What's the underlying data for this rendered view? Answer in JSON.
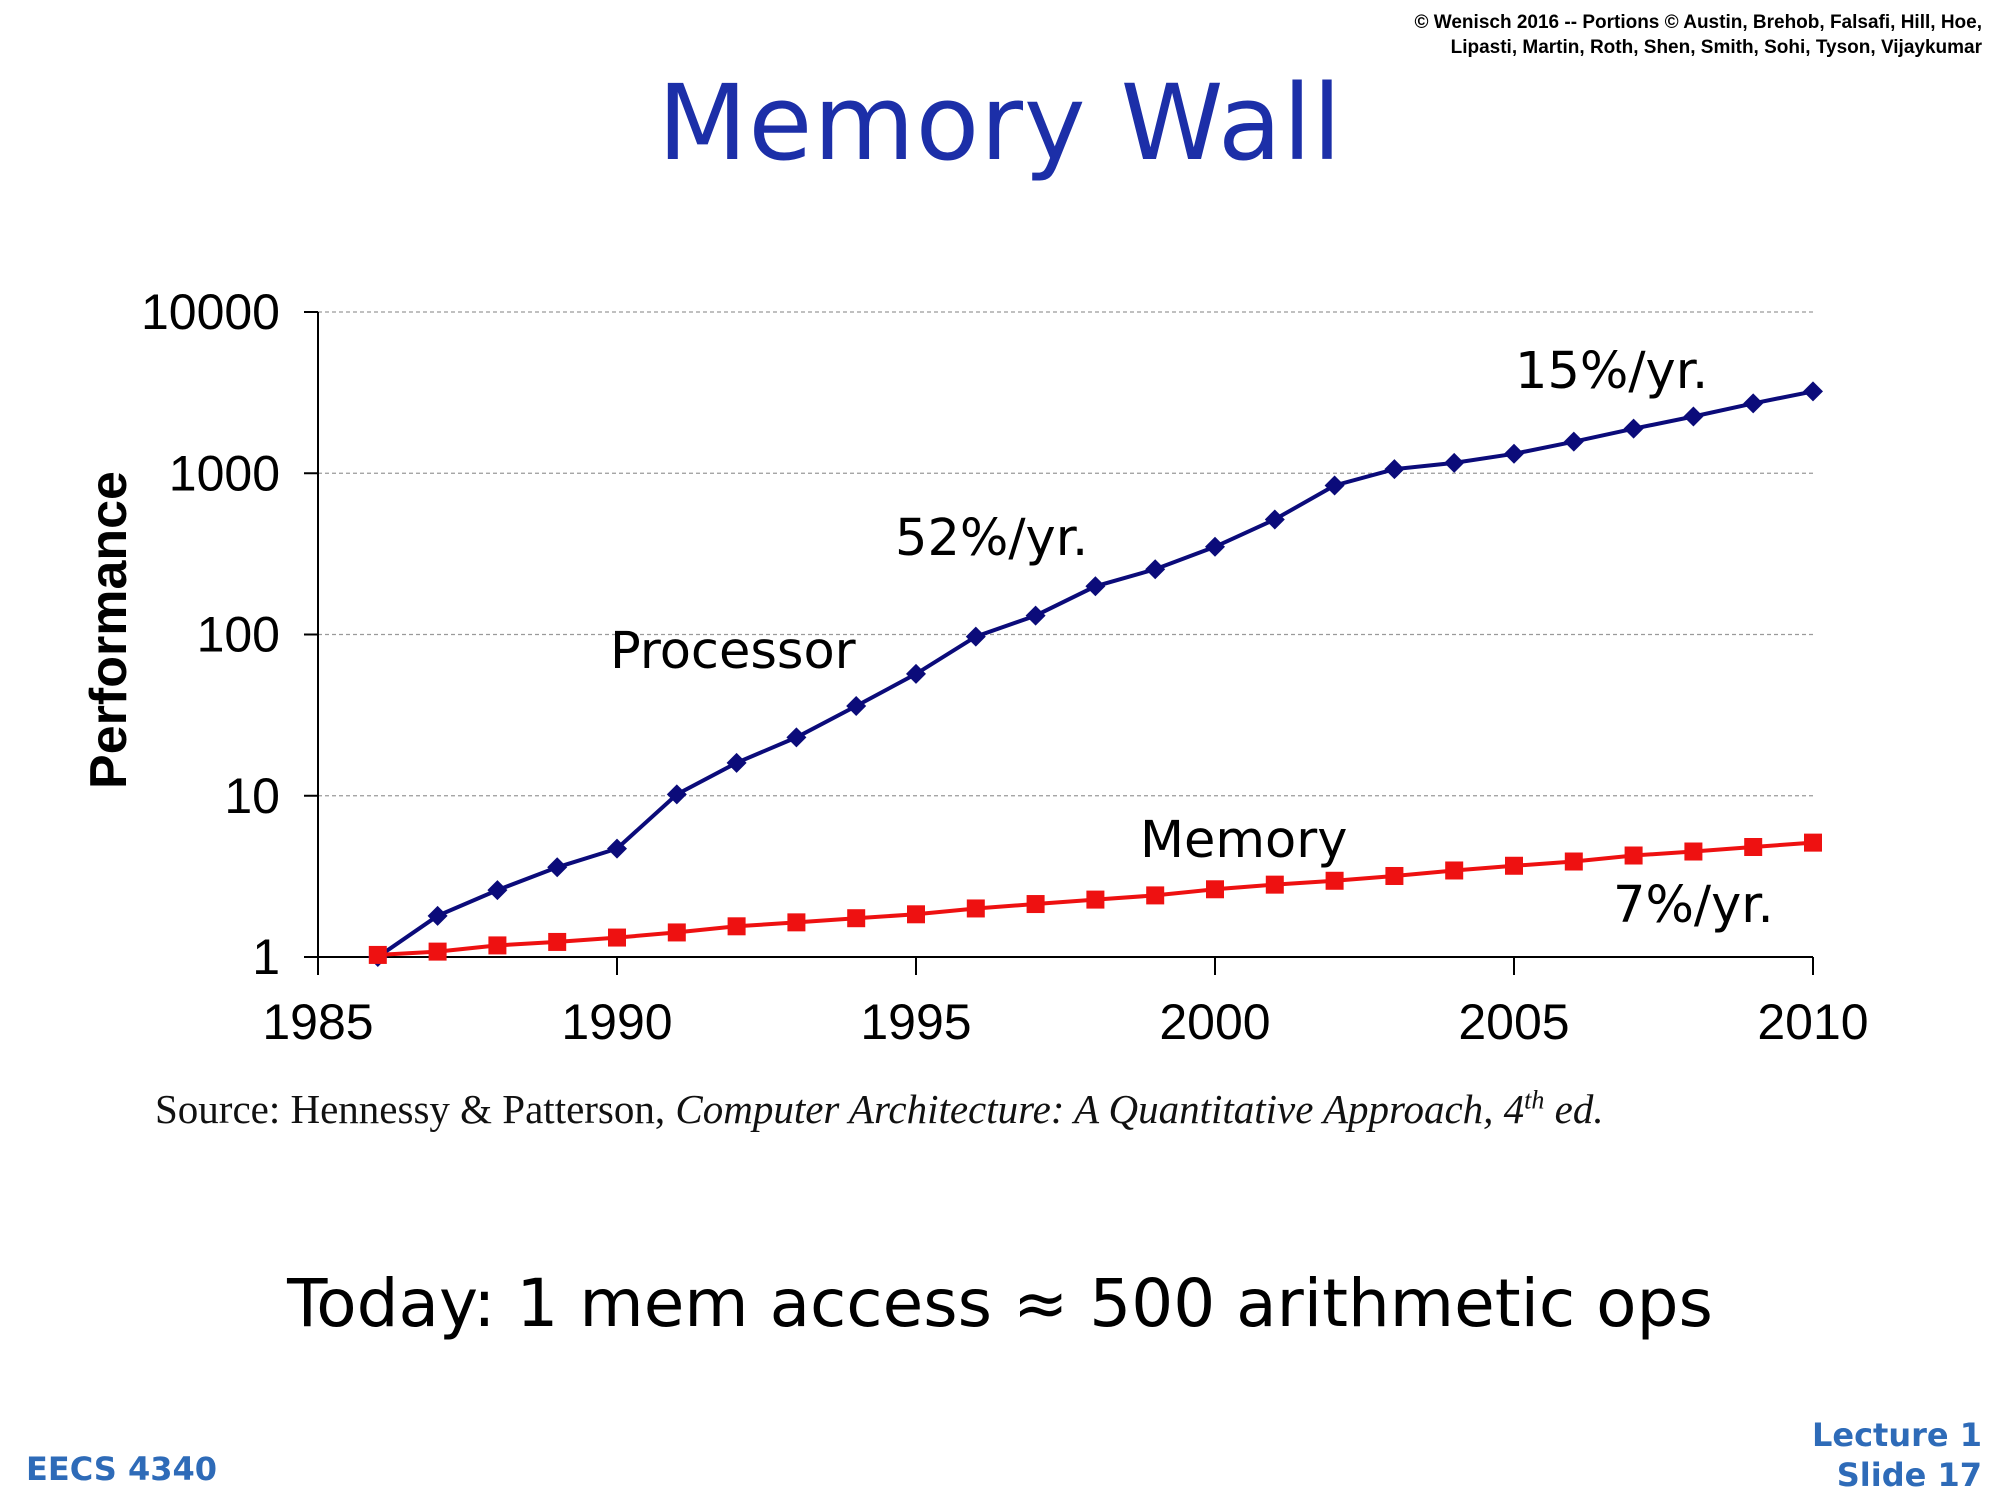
{
  "header": {
    "copyright_line1": "© Wenisch 2016 -- Portions © Austin, Brehob, Falsafi, Hill, Hoe,",
    "copyright_line2": "Lipasti, Martin, Roth, Shen, Smith, Sohi, Tyson, Vijaykumar"
  },
  "slide_title": "Memory Wall",
  "source": {
    "prefix": "Source: Hennessy & Patterson, ",
    "book": "Computer Architecture: A Quantitative Approach, 4",
    "sup": "th",
    "suffix": " ed."
  },
  "bottom_text": "Today: 1 mem access ≈ 500 arithmetic ops",
  "footer": {
    "course": "EECS 4340",
    "lecture": "Lecture 1",
    "slide": "Slide 17"
  },
  "chart_data": {
    "type": "line",
    "title": "",
    "xlabel": "",
    "ylabel": "Performance",
    "y_scale": "log",
    "ylim": [
      1,
      10000
    ],
    "xlim": [
      1985,
      2010
    ],
    "x_ticks": [
      "1985",
      "1990",
      "1995",
      "2000",
      "2005",
      "2010"
    ],
    "y_ticks": [
      "1",
      "10",
      "100",
      "1000",
      "10000"
    ],
    "grid": "horizontal dashed",
    "x": [
      1986,
      1987,
      1988,
      1989,
      1990,
      1991,
      1992,
      1993,
      1994,
      1995,
      1996,
      1997,
      1998,
      1999,
      2000,
      2001,
      2002,
      2003,
      2004,
      2005,
      2006,
      2007,
      2008,
      2009,
      2010
    ],
    "series": [
      {
        "name": "Processor",
        "color": "#0b0b7a",
        "marker": "diamond",
        "values": [
          1,
          1.8,
          2.6,
          3.6,
          4.7,
          10.2,
          16,
          23,
          36,
          57,
          97,
          131,
          199,
          254,
          350,
          517,
          840,
          1060,
          1160,
          1320,
          1570,
          1890,
          2250,
          2710,
          3220
        ]
      },
      {
        "name": "Memory",
        "color": "#ee1111",
        "marker": "square",
        "values": [
          1.03,
          1.08,
          1.18,
          1.24,
          1.32,
          1.42,
          1.55,
          1.64,
          1.74,
          1.84,
          2.0,
          2.13,
          2.27,
          2.41,
          2.63,
          2.81,
          2.97,
          3.18,
          3.44,
          3.68,
          3.91,
          4.26,
          4.51,
          4.81,
          5.12
        ]
      }
    ],
    "annotations": [
      "52%/yr.",
      "15%/yr.",
      "7%/yr."
    ]
  }
}
